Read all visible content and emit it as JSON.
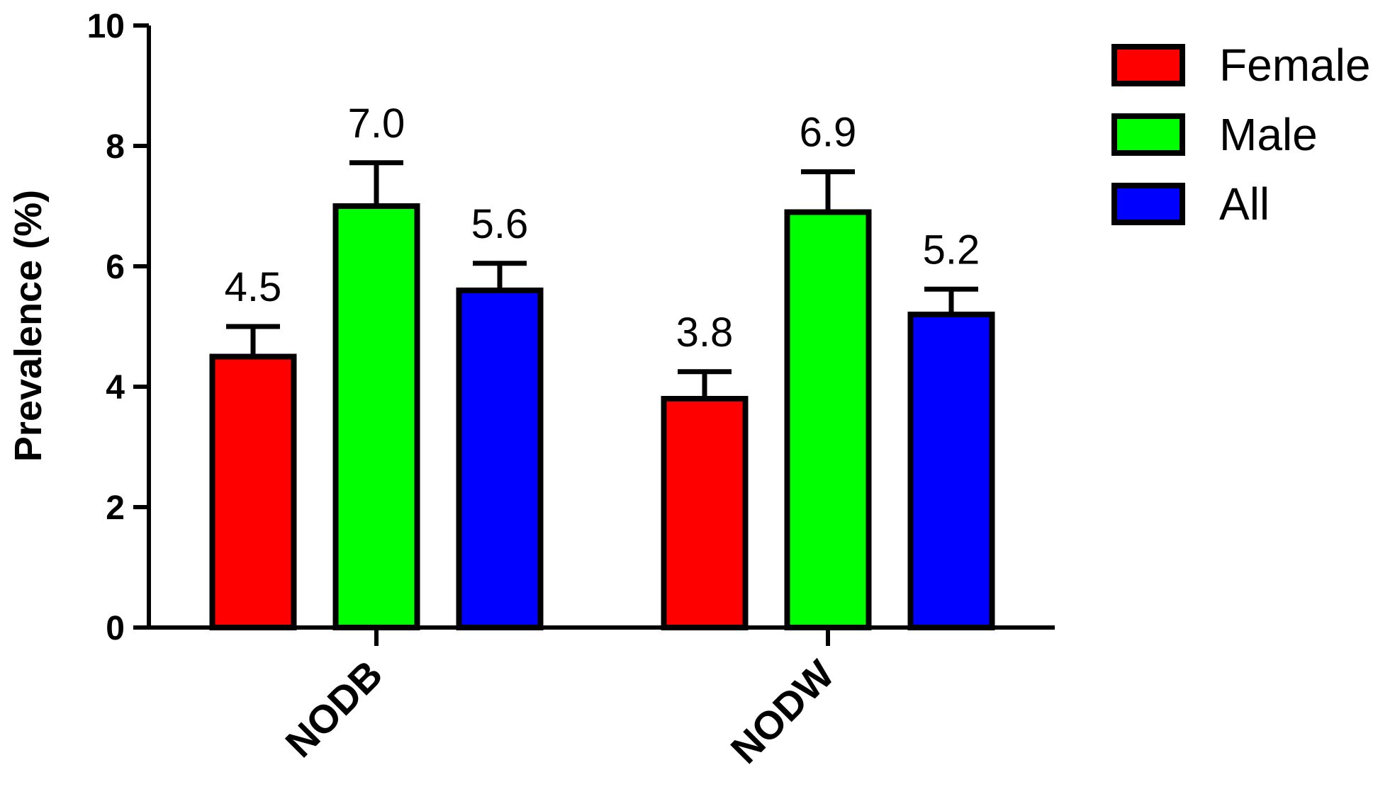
{
  "chart_data": {
    "type": "bar",
    "categories": [
      "NODB",
      "NODW"
    ],
    "series": [
      {
        "name": "Female",
        "color": "#ff0000",
        "values": [
          4.5,
          3.8
        ],
        "error": [
          0.5,
          0.45
        ],
        "labels": [
          "4.5",
          "3.8"
        ]
      },
      {
        "name": "Male",
        "color": "#00ff00",
        "values": [
          7.0,
          6.9
        ],
        "error": [
          0.72,
          0.67
        ],
        "labels": [
          "7.0",
          "6.9"
        ]
      },
      {
        "name": "All",
        "color": "#0000ff",
        "values": [
          5.6,
          5.2
        ],
        "error": [
          0.45,
          0.42
        ],
        "labels": [
          "5.6",
          "5.2"
        ]
      }
    ],
    "ylabel": "Prevalence (%)",
    "xlabel": "",
    "ylim": [
      0,
      10
    ],
    "yticks": [
      0,
      2,
      4,
      6,
      8,
      10
    ],
    "ytick_labels": [
      "0",
      "2",
      "4",
      "6",
      "8",
      "10"
    ],
    "grid": false,
    "legend_position": "top-right"
  }
}
